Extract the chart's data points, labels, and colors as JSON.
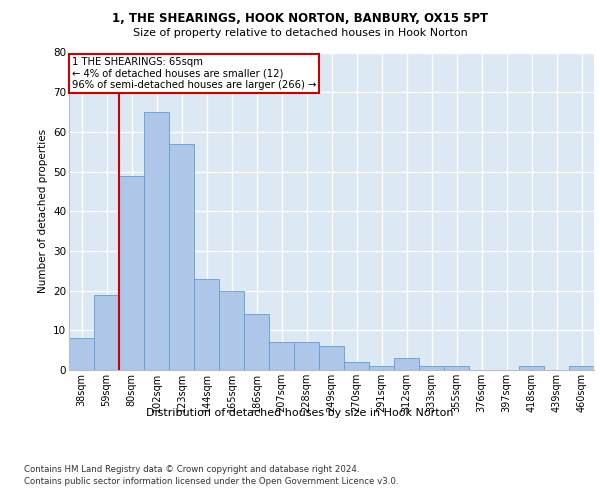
{
  "title1": "1, THE SHEARINGS, HOOK NORTON, BANBURY, OX15 5PT",
  "title2": "Size of property relative to detached houses in Hook Norton",
  "xlabel": "Distribution of detached houses by size in Hook Norton",
  "ylabel": "Number of detached properties",
  "categories": [
    "38sqm",
    "59sqm",
    "80sqm",
    "102sqm",
    "123sqm",
    "144sqm",
    "165sqm",
    "186sqm",
    "207sqm",
    "228sqm",
    "249sqm",
    "270sqm",
    "291sqm",
    "312sqm",
    "333sqm",
    "355sqm",
    "376sqm",
    "397sqm",
    "418sqm",
    "439sqm",
    "460sqm"
  ],
  "values": [
    8,
    19,
    49,
    65,
    57,
    23,
    20,
    14,
    7,
    7,
    6,
    2,
    1,
    3,
    1,
    1,
    0,
    0,
    1,
    0,
    1
  ],
  "bar_color": "#aec6e8",
  "bar_edge_color": "#5a9fd4",
  "background_color": "#dde8f5",
  "grid_color": "#ffffff",
  "vline_color": "#cc0000",
  "annotation_text": "1 THE SHEARINGS: 65sqm\n← 4% of detached houses are smaller (12)\n96% of semi-detached houses are larger (266) →",
  "annotation_box_color": "#cc0000",
  "ylim": [
    0,
    80
  ],
  "yticks": [
    0,
    10,
    20,
    30,
    40,
    50,
    60,
    70,
    80
  ],
  "footnote1": "Contains HM Land Registry data © Crown copyright and database right 2024.",
  "footnote2": "Contains public sector information licensed under the Open Government Licence v3.0."
}
